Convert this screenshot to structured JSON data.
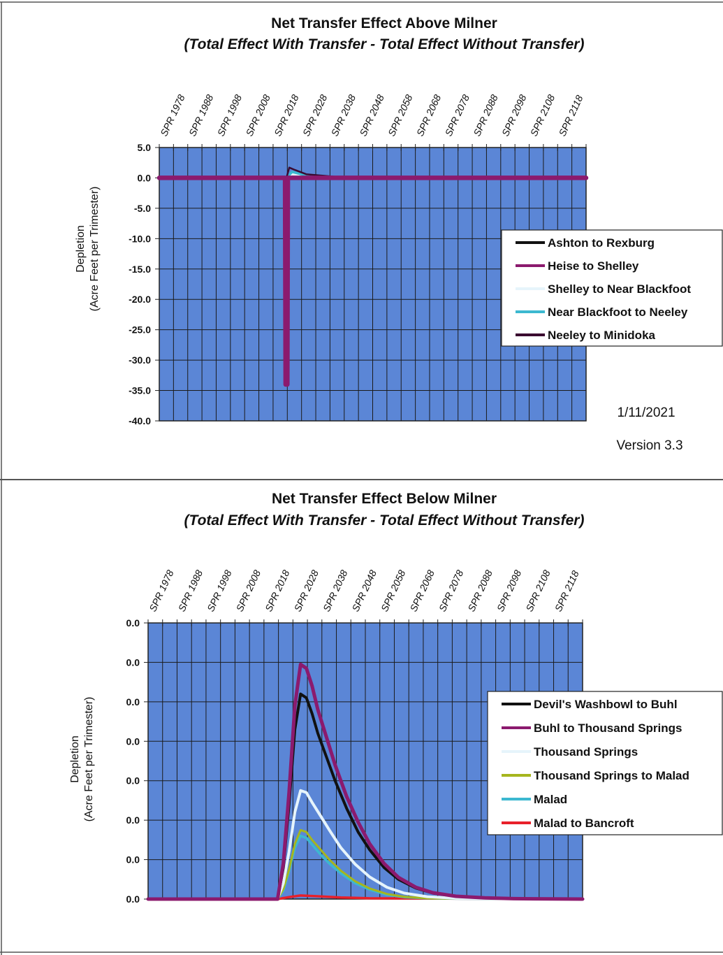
{
  "chart_data": [
    {
      "type": "line",
      "title": "Net Transfer Effect Above Milner",
      "subtitle": "(Total Effect With Transfer - Total Effect Without Transfer)",
      "ylabel_line1": "Depletion",
      "ylabel_line2": "(Acre Feet per Trimester)",
      "x_tick_labels": [
        "SPR 1978",
        "SPR 1988",
        "SPR 1998",
        "SPR 2008",
        "SPR 2018",
        "SPR 2028",
        "SPR 2038",
        "SPR 2048",
        "SPR 2058",
        "SPR 2068",
        "SPR 2078",
        "SPR 2088",
        "SPR 2098",
        "SPR 2108",
        "SPR 2118"
      ],
      "y_tick_labels": [
        "5.0",
        "0.0",
        "-5.0",
        "-10.0",
        "-15.0",
        "-20.0",
        "-25.0",
        "-30.0",
        "-35.0",
        "-40.0"
      ],
      "xlim": [
        1973,
        2124
      ],
      "ylim": [
        -40,
        5
      ],
      "grid": true,
      "legend_position": "right",
      "annotations": [
        "1/11/2021",
        "Version 3.3"
      ],
      "series": [
        {
          "name": "Ashton to Rexburg",
          "color": "#111111",
          "x": [
            1973,
            2018,
            2019,
            2124
          ],
          "y": [
            0,
            0,
            0,
            0
          ]
        },
        {
          "name": "Heise to Shelley",
          "color": "#8b1a6e",
          "x": [
            1973,
            2017.5,
            2017.7,
            2018.3,
            2018.5,
            2124
          ],
          "y": [
            0,
            0,
            -34,
            -34,
            0,
            0
          ]
        },
        {
          "name": "Shelley to Near Blackfoot",
          "color": "#e6f4fb",
          "x": [
            1973,
            2018,
            2020,
            2030,
            2124
          ],
          "y": [
            0,
            0,
            0.6,
            0.1,
            0
          ]
        },
        {
          "name": "Near Blackfoot to Neeley",
          "color": "#3cb8d0",
          "x": [
            1973,
            2018,
            2020,
            2024,
            2032,
            2045,
            2124
          ],
          "y": [
            0,
            0,
            1.0,
            0.5,
            0.2,
            0.05,
            0
          ]
        },
        {
          "name": "Neeley to Minidoka",
          "color": "#3a0a30",
          "x": [
            1973,
            2018,
            2019,
            2021,
            2025,
            2035,
            2124
          ],
          "y": [
            0,
            0,
            1.7,
            1.3,
            0.6,
            0.2,
            0
          ]
        }
      ]
    },
    {
      "type": "line",
      "title": "Net Transfer Effect Below Milner",
      "subtitle": "(Total Effect With Transfer - Total Effect Without Transfer)",
      "ylabel_line1": "Depletion",
      "ylabel_line2": "(Acre Feet per Trimester)",
      "x_tick_labels": [
        "SPR 1978",
        "SPR 1988",
        "SPR 1998",
        "SPR 2008",
        "SPR 2018",
        "SPR 2028",
        "SPR 2038",
        "SPR 2048",
        "SPR 2058",
        "SPR 2068",
        "SPR 2078",
        "SPR 2088",
        "SPR 2098",
        "SPR 2108",
        "SPR 2118"
      ],
      "y_tick_labels": [
        "0.0",
        "0.0",
        "0.0",
        "0.0",
        "0.0",
        "0.0",
        "0.0",
        "0.0"
      ],
      "xlim": [
        1973,
        2124
      ],
      "ylim": [
        0,
        7
      ],
      "grid": true,
      "legend_position": "right",
      "series": [
        {
          "name": "Devil's Washbowl to Buhl",
          "color": "#111111",
          "x": [
            1973,
            2018,
            2020,
            2022,
            2024,
            2026,
            2028,
            2030,
            2032,
            2035,
            2038,
            2042,
            2046,
            2050,
            2055,
            2060,
            2066,
            2072,
            2080,
            2090,
            2100,
            2124
          ],
          "y": [
            0,
            0,
            0.8,
            2.4,
            4.3,
            5.2,
            5.1,
            4.7,
            4.2,
            3.6,
            3.0,
            2.3,
            1.7,
            1.25,
            0.8,
            0.5,
            0.28,
            0.15,
            0.07,
            0.03,
            0.01,
            0
          ]
        },
        {
          "name": "Buhl to Thousand Springs",
          "color": "#8b1a6e",
          "x": [
            1973,
            2018,
            2020,
            2022,
            2024,
            2026,
            2028,
            2030,
            2032,
            2035,
            2038,
            2042,
            2046,
            2050,
            2055,
            2060,
            2066,
            2072,
            2080,
            2090,
            2100,
            2124
          ],
          "y": [
            0,
            0,
            0.9,
            2.7,
            4.9,
            5.95,
            5.85,
            5.4,
            4.8,
            4.1,
            3.4,
            2.6,
            1.95,
            1.4,
            0.9,
            0.55,
            0.3,
            0.16,
            0.07,
            0.03,
            0.01,
            0
          ]
        },
        {
          "name": "Thousand Springs",
          "color": "#e6f4fb",
          "x": [
            1973,
            2018,
            2020,
            2022,
            2024,
            2026,
            2028,
            2030,
            2033,
            2036,
            2040,
            2045,
            2050,
            2056,
            2062,
            2070,
            2080,
            2124
          ],
          "y": [
            0,
            0,
            0.4,
            1.2,
            2.2,
            2.75,
            2.7,
            2.45,
            2.1,
            1.75,
            1.3,
            0.88,
            0.56,
            0.3,
            0.15,
            0.06,
            0.02,
            0
          ]
        },
        {
          "name": "Thousand Springs to Malad",
          "color": "#a6b61e",
          "x": [
            1973,
            2018,
            2020,
            2022,
            2024,
            2026,
            2028,
            2030,
            2033,
            2036,
            2040,
            2045,
            2050,
            2056,
            2062,
            2070,
            2080,
            2124
          ],
          "y": [
            0,
            0,
            0.25,
            0.75,
            1.4,
            1.75,
            1.7,
            1.5,
            1.25,
            1.0,
            0.72,
            0.45,
            0.27,
            0.13,
            0.06,
            0.02,
            0.01,
            0
          ]
        },
        {
          "name": "Malad",
          "color": "#3cb8d0",
          "x": [
            1973,
            2018,
            2020,
            2022,
            2024,
            2026,
            2028,
            2030,
            2033,
            2036,
            2040,
            2045,
            2050,
            2056,
            2062,
            2070,
            2080,
            2124
          ],
          "y": [
            0,
            0,
            0.22,
            0.7,
            1.3,
            1.6,
            1.55,
            1.38,
            1.12,
            0.9,
            0.65,
            0.4,
            0.24,
            0.11,
            0.05,
            0.02,
            0.01,
            0
          ]
        },
        {
          "name": "Malad to Bancroft",
          "color": "#e8202a",
          "x": [
            1973,
            2018,
            2022,
            2026,
            2032,
            2040,
            2050,
            2124
          ],
          "y": [
            0,
            0,
            0.05,
            0.09,
            0.07,
            0.04,
            0.02,
            0
          ]
        }
      ]
    }
  ]
}
